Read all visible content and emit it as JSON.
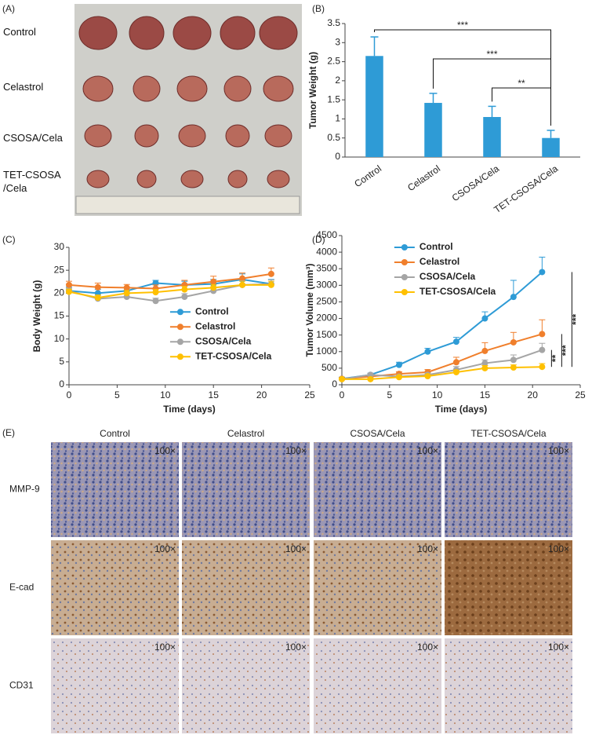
{
  "panel_labels": [
    "(A)",
    "(B)",
    "(C)",
    "(D)",
    "(E)"
  ],
  "photo_a": {
    "row_labels": [
      "Control",
      "Celastrol",
      "CSOSA/Cela",
      "TET-CSOSA\n/Cela"
    ]
  },
  "chart_data": [
    {
      "type": "bar",
      "y_label": "Tumor Weight (g)",
      "categories": [
        "Control",
        "Celastrol",
        "CSOSA/Cela",
        "TET-CSOSA/Cela"
      ],
      "values": [
        2.65,
        1.42,
        1.05,
        0.5
      ],
      "errors": [
        0.5,
        0.25,
        0.28,
        0.2
      ],
      "color": "#2e9bd6",
      "ylim": [
        0,
        3.5
      ],
      "yticks": [
        0,
        0.5,
        1,
        1.5,
        2,
        2.5,
        3,
        3.5
      ],
      "significance": [
        {
          "from": "Control",
          "to": "TET-CSOSA/Cela",
          "label": "***"
        },
        {
          "from": "Celastrol",
          "to": "TET-CSOSA/Cela",
          "label": "***"
        },
        {
          "from": "CSOSA/Cela",
          "to": "TET-CSOSA/Cela",
          "label": "**"
        }
      ]
    },
    {
      "type": "line",
      "x_label": "Time (days)",
      "y_label": "Body Weight (g)",
      "x": [
        0,
        3,
        6,
        9,
        12,
        15,
        18,
        21
      ],
      "xlim": [
        0,
        25
      ],
      "xticks": [
        0,
        5,
        10,
        15,
        20,
        25
      ],
      "ylim": [
        0,
        30
      ],
      "yticks": [
        0,
        5,
        10,
        15,
        20,
        25,
        30
      ],
      "legend": "right",
      "series": [
        {
          "name": "Control",
          "color": "#2e9bd6",
          "values": [
            20.5,
            20.0,
            20.5,
            22.2,
            21.8,
            22.0,
            23.0,
            22.0
          ],
          "errors": [
            0.8,
            0.8,
            0.7,
            0.6,
            0.8,
            1.0,
            1.2,
            1.0
          ]
        },
        {
          "name": "Celastrol",
          "color": "#f07f2c",
          "values": [
            21.8,
            21.3,
            21.2,
            21.0,
            21.8,
            22.5,
            23.2,
            24.2
          ],
          "errors": [
            0.8,
            0.9,
            0.7,
            0.8,
            1.0,
            1.2,
            1.2,
            1.3
          ]
        },
        {
          "name": "CSOSA/Cela",
          "color": "#a5a5a5",
          "values": [
            20.5,
            18.8,
            19.2,
            18.3,
            19.2,
            20.5,
            21.8,
            22.0
          ],
          "errors": [
            0.6,
            0.7,
            0.6,
            0.6,
            0.7,
            0.8,
            0.9,
            0.9
          ]
        },
        {
          "name": "TET-CSOSA/Cela",
          "color": "#ffc000",
          "values": [
            20.3,
            19.0,
            20.0,
            20.2,
            20.8,
            21.2,
            21.8,
            21.8
          ],
          "errors": [
            0.6,
            0.6,
            0.6,
            0.6,
            0.7,
            0.7,
            0.8,
            0.8
          ]
        }
      ]
    },
    {
      "type": "line",
      "x_label": "Time (days)",
      "y_label": "Tumor Volume (mm³)",
      "x": [
        0,
        3,
        6,
        9,
        12,
        15,
        18,
        21
      ],
      "xlim": [
        0,
        25
      ],
      "xticks": [
        0,
        5,
        10,
        15,
        20,
        25
      ],
      "ylim": [
        0,
        4500
      ],
      "yticks": [
        0,
        500,
        1000,
        1500,
        2000,
        2500,
        3000,
        3500,
        4000,
        4500
      ],
      "legend": "upper-left",
      "series": [
        {
          "name": "Control",
          "color": "#2e9bd6",
          "values": [
            180,
            300,
            600,
            1000,
            1300,
            2000,
            2650,
            3400
          ],
          "errors": [
            50,
            50,
            80,
            100,
            130,
            200,
            500,
            450
          ]
        },
        {
          "name": "Celastrol",
          "color": "#f07f2c",
          "values": [
            180,
            250,
            330,
            380,
            680,
            1020,
            1280,
            1530
          ],
          "errors": [
            40,
            40,
            60,
            80,
            150,
            250,
            300,
            430
          ]
        },
        {
          "name": "CSOSA/Cela",
          "color": "#a5a5a5",
          "values": [
            170,
            300,
            250,
            300,
            450,
            650,
            750,
            1050
          ],
          "errors": [
            30,
            40,
            50,
            60,
            100,
            100,
            150,
            200
          ]
        },
        {
          "name": "TET-CSOSA/Cela",
          "color": "#ffc000",
          "values": [
            170,
            170,
            230,
            260,
            380,
            500,
            520,
            540
          ],
          "errors": [
            30,
            30,
            40,
            50,
            60,
            80,
            80,
            100
          ]
        }
      ],
      "significance": [
        {
          "from": "TET-CSOSA/Cela",
          "to": "CSOSA/Cela",
          "label": "**"
        },
        {
          "from": "TET-CSOSA/Cela",
          "to": "Celastrol",
          "label": "***"
        },
        {
          "from": "TET-CSOSA/Cela",
          "to": "Control",
          "label": "***"
        }
      ]
    }
  ],
  "ihc": {
    "columns": [
      "Control",
      "Celastrol",
      "CSOSA/Cela",
      "TET-CSOSA/Cela"
    ],
    "rows": [
      "MMP-9",
      "E-cad",
      "CD31"
    ],
    "magnification": "100×"
  }
}
